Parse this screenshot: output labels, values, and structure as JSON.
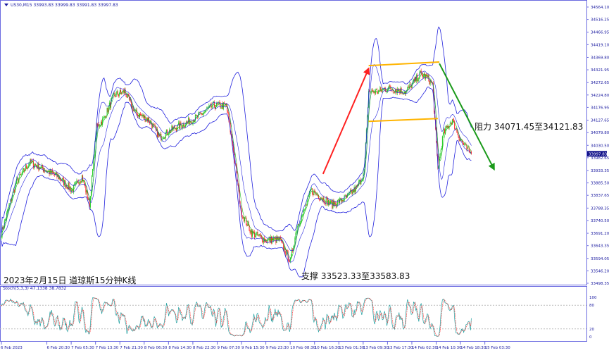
{
  "header": {
    "symbol": "US30,M15",
    "ohlc": "33993.83 33999.83 33991.83 33997.83"
  },
  "annotations": {
    "title": "2023年2月15日 道琼斯15分钟K线",
    "resistance": "阻力 34071.45至34121.83",
    "support": "支撑 33523.33至33583.83"
  },
  "chart_data": [
    {
      "type": "candlestick",
      "timeframe": "M15",
      "ylim": [
        33498.35,
        34564.1
      ],
      "yticks": [
        "34564.10",
        "34516.25",
        "34466.95",
        "34419.10",
        "34369.80",
        "34321.95",
        "34272.65",
        "34224.80",
        "34176.95",
        "34127.65",
        "34079.80",
        "34030.50",
        "33982.65",
        "33933.35",
        "33885.50",
        "33837.65",
        "33788.35",
        "33740.50",
        "33691.20",
        "33643.35",
        "33594.05",
        "33546.20",
        "33498.35"
      ],
      "current_price": "33997.83",
      "xticks": [
        "6 Feb 2023",
        "6 Feb 20:30",
        "7 Feb 05:30",
        "7 Feb 13:30",
        "7 Feb 21:30",
        "8 Feb 06:30",
        "8 Feb 14:30",
        "8 Feb 22:30",
        "9 Feb 07:30",
        "9 Feb 15:30",
        "9 Feb 23:30",
        "10 Feb 08:30",
        "10 Feb 16:30",
        "13 Feb 01:30",
        "13 Feb 09:30",
        "13 Feb 17:30",
        "14 Feb 02:30",
        "14 Feb 10:30",
        "14 Feb 18:30",
        "15 Feb 03:30"
      ],
      "close_path_bar_price": [
        [
          0,
          33693
        ],
        [
          19,
          33884
        ],
        [
          37,
          33965
        ],
        [
          56,
          33938
        ],
        [
          74,
          33911
        ],
        [
          93,
          33857
        ],
        [
          106,
          33911
        ],
        [
          116,
          33802
        ],
        [
          125,
          34101
        ],
        [
          134,
          34129
        ],
        [
          148,
          34224
        ],
        [
          162,
          34238
        ],
        [
          176,
          34156
        ],
        [
          194,
          34129
        ],
        [
          208,
          34061
        ],
        [
          222,
          34088
        ],
        [
          241,
          34115
        ],
        [
          259,
          34142
        ],
        [
          278,
          34183
        ],
        [
          296,
          34183
        ],
        [
          306,
          33993
        ],
        [
          315,
          33775
        ],
        [
          329,
          33693
        ],
        [
          347,
          33666
        ],
        [
          366,
          33666
        ],
        [
          380,
          33584
        ],
        [
          389,
          33720
        ],
        [
          398,
          33775
        ],
        [
          407,
          33857
        ],
        [
          421,
          33829
        ],
        [
          435,
          33802
        ],
        [
          454,
          33829
        ],
        [
          468,
          33870
        ],
        [
          477,
          33925
        ],
        [
          483,
          34238
        ],
        [
          495,
          34238
        ],
        [
          509,
          34251
        ],
        [
          532,
          34238
        ],
        [
          551,
          34306
        ],
        [
          560,
          34292
        ],
        [
          567,
          34265
        ],
        [
          574,
          33938
        ],
        [
          581,
          34074
        ],
        [
          593,
          34129
        ],
        [
          602,
          34061
        ],
        [
          611,
          34020
        ],
        [
          618,
          33998
        ]
      ],
      "overlays": [
        "upper band",
        "lower band",
        "moving averages"
      ],
      "drawn_lines": [
        {
          "kind": "arrow",
          "color": "#ff2020",
          "from_bar": 423,
          "from_price": 33920,
          "to_bar": 483,
          "to_price": 34327
        },
        {
          "kind": "line",
          "color": "#ffb400",
          "from_bar": 483,
          "from_price": 34338,
          "to_bar": 576,
          "to_price": 34352
        },
        {
          "kind": "line",
          "color": "#ffb400",
          "from_bar": 483,
          "from_price": 34123,
          "to_bar": 574,
          "to_price": 34134
        },
        {
          "kind": "arrow",
          "color": "#1a9a1a",
          "from_bar": 576,
          "from_price": 34346,
          "to_bar": 648,
          "to_price": 33938
        }
      ],
      "colors": {
        "up": "#22cc22",
        "down": "#ff2020",
        "bands": "#2222dd",
        "axis": "#6a6ae0"
      }
    },
    {
      "type": "line",
      "indicator": "Stoch(5,3,3)",
      "label": "Stoch(5,3,3) 47.1338 38.7832",
      "main_value": 47.1338,
      "signal_value": 38.7832,
      "ylim": [
        0,
        100
      ],
      "yticks": [
        "100",
        "80",
        "20",
        "0"
      ],
      "colors": {
        "main": "#20a0a0",
        "signal": "#ff3030"
      }
    }
  ]
}
